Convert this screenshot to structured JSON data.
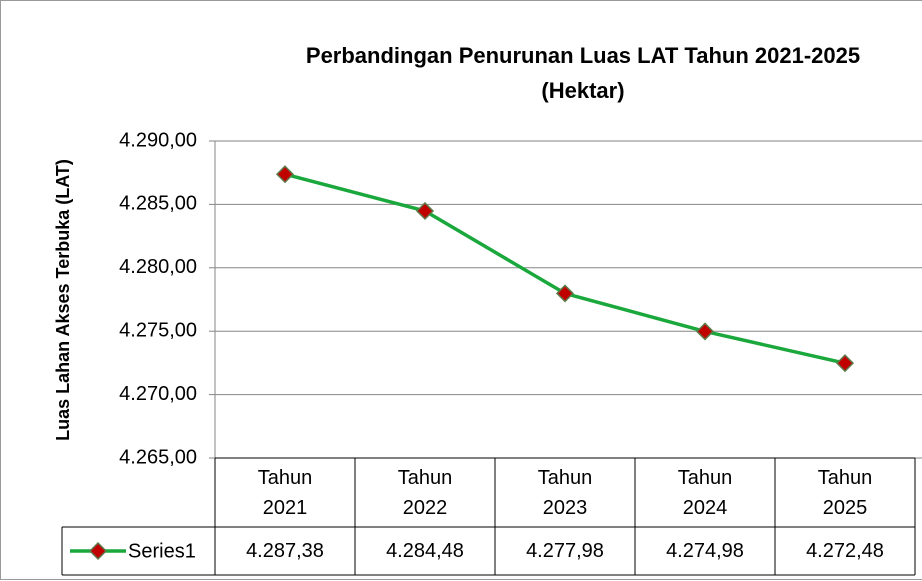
{
  "chart_data": {
    "type": "line",
    "title": [
      "Perbandingan Penurunan Luas LAT Tahun 2021-2025",
      "(Hektar)"
    ],
    "y_label": "Luas Lahan Akses Terbuka (LAT)",
    "categories": [
      "Tahun 2021",
      "Tahun 2022",
      "Tahun 2023",
      "Tahun 2024",
      "Tahun 2025"
    ],
    "series": [
      {
        "name": "Series1",
        "color": "#1aa83c",
        "marker_color": "#c00000",
        "values": [
          4287.38,
          4284.48,
          4277.98,
          4274.98,
          4272.48
        ],
        "value_labels": [
          "4.287,38",
          "4.284,48",
          "4.277,98",
          "4.274,98",
          "4.272,48"
        ]
      }
    ],
    "ylim": [
      4265,
      4290
    ],
    "yticks": [
      {
        "value": 4265,
        "label": "4.265,00"
      },
      {
        "value": 4270,
        "label": "4.270,00"
      },
      {
        "value": 4275,
        "label": "4.275,00"
      },
      {
        "value": 4280,
        "label": "4.280,00"
      },
      {
        "value": 4285,
        "label": "4.285,00"
      },
      {
        "value": 4290,
        "label": "4.290,00"
      }
    ],
    "grid": true,
    "data_table": true
  }
}
